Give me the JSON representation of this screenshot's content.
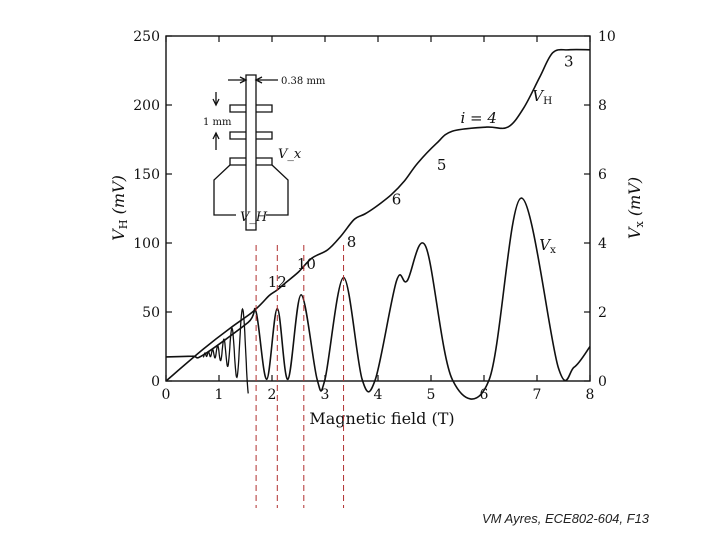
{
  "slide": {
    "credit": "VM Ayres, ECE802-604, F13"
  },
  "chart_data": {
    "type": "line",
    "xlabel": "Magnetic field (T)",
    "ylabel_left": "V_H (mV)",
    "ylabel_right": "V_x (mV)",
    "xlim": [
      0,
      8
    ],
    "ylim_left": [
      0,
      250
    ],
    "ylim_right": [
      0,
      10
    ],
    "x_ticks": [
      0,
      1,
      2,
      3,
      4,
      5,
      6,
      7,
      8
    ],
    "y_ticks_left": [
      0,
      50,
      100,
      150,
      200,
      250
    ],
    "y_ticks_right": [
      0,
      2,
      4,
      6,
      8,
      10
    ],
    "series": [
      {
        "name": "V_H",
        "axis": "left",
        "points": [
          [
            0,
            0
          ],
          [
            0.7,
            23
          ],
          [
            1.2,
            38
          ],
          [
            1.6,
            49
          ],
          [
            1.8,
            56
          ],
          [
            1.95,
            62
          ],
          [
            2.1,
            66
          ],
          [
            2.25,
            71
          ],
          [
            2.5,
            79
          ],
          [
            2.75,
            89
          ],
          [
            3.05,
            95
          ],
          [
            3.3,
            105
          ],
          [
            3.55,
            117
          ],
          [
            3.75,
            121
          ],
          [
            3.95,
            126
          ],
          [
            4.25,
            135
          ],
          [
            4.5,
            145
          ],
          [
            4.75,
            158
          ],
          [
            5.1,
            172
          ],
          [
            5.4,
            181
          ],
          [
            6.05,
            184
          ],
          [
            6.45,
            184
          ],
          [
            6.75,
            198
          ],
          [
            7.05,
            220
          ],
          [
            7.3,
            238
          ],
          [
            7.6,
            240
          ],
          [
            8,
            240
          ]
        ]
      },
      {
        "name": "V_x",
        "axis": "right",
        "points": [
          [
            0,
            0.7
          ],
          [
            0.5,
            0.72
          ],
          [
            0.7,
            0.75
          ],
          [
            1.55,
            1.7
          ],
          [
            1.7,
            2.0
          ],
          [
            1.9,
            0.05
          ],
          [
            2.1,
            2.1
          ],
          [
            2.3,
            0.05
          ],
          [
            2.55,
            2.5
          ],
          [
            2.85,
            0.05
          ],
          [
            3.0,
            0.05
          ],
          [
            3.35,
            3.0
          ],
          [
            3.7,
            0.05
          ],
          [
            3.95,
            0.05
          ],
          [
            4.35,
            2.9
          ],
          [
            4.55,
            2.9
          ],
          [
            4.9,
            3.9
          ],
          [
            5.4,
            0.05
          ],
          [
            6.1,
            0.05
          ],
          [
            6.7,
            5.3
          ],
          [
            7.4,
            0.4
          ],
          [
            7.7,
            0.4
          ],
          [
            8,
            1.0
          ]
        ]
      }
    ],
    "annotations": [
      {
        "text": "3",
        "x": 7.6,
        "y": 228,
        "axis": "left"
      },
      {
        "text": "V_H",
        "x": 7.1,
        "y": 203,
        "axis": "left"
      },
      {
        "text": "i = 4",
        "x": 5.9,
        "y": 187,
        "axis": "left"
      },
      {
        "text": "5",
        "x": 5.2,
        "y": 153,
        "axis": "left"
      },
      {
        "text": "6",
        "x": 4.35,
        "y": 128,
        "axis": "left"
      },
      {
        "text": "8",
        "x": 3.5,
        "y": 97,
        "axis": "left"
      },
      {
        "text": "10",
        "x": 2.65,
        "y": 81,
        "axis": "left"
      },
      {
        "text": "12",
        "x": 2.1,
        "y": 68,
        "axis": "left"
      },
      {
        "text": "V_x",
        "x": 7.2,
        "y": 3.8,
        "axis": "right"
      }
    ],
    "reference_lines_x": [
      1.7,
      2.1,
      2.6,
      3.35
    ],
    "inset": {
      "width_label": "0.38 mm",
      "spacing_label": "1 mm",
      "vx_label": "V_x",
      "vh_label": "V_H"
    }
  }
}
